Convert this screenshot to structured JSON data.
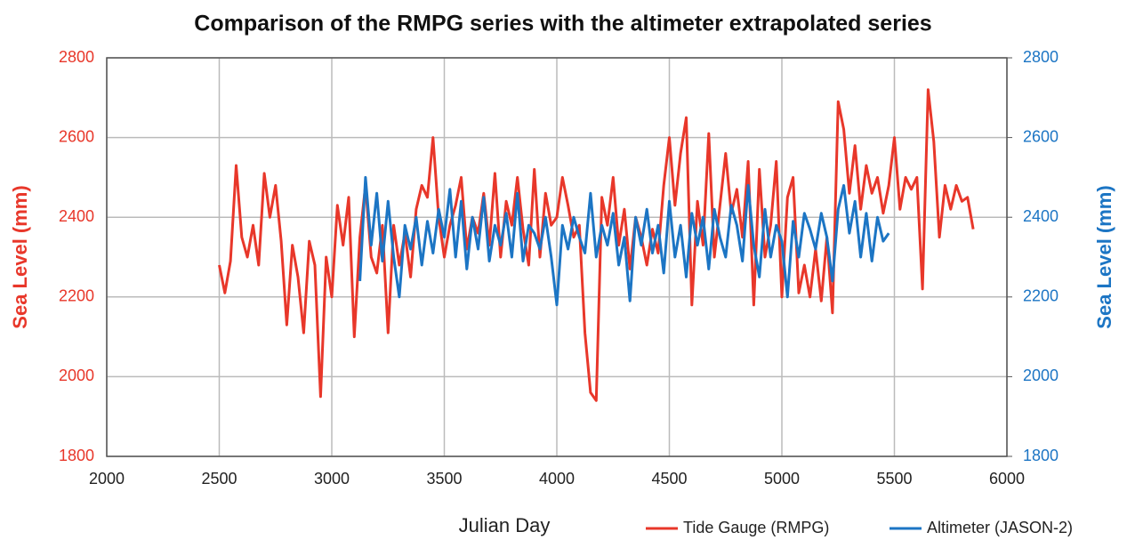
{
  "chart_data": {
    "type": "line",
    "title": "Comparison of the RMPG series with the  altimeter extrapolated series",
    "x_label": "Julian Day",
    "y_label": "Sea Level (mm)",
    "y2_label": "Sea Level (mm)",
    "xlim": [
      2000,
      6000
    ],
    "xticks": [
      2000,
      2500,
      3000,
      3500,
      4000,
      4500,
      5000,
      5500,
      6000
    ],
    "ylim": [
      1800,
      2800
    ],
    "yticks": [
      1800,
      2000,
      2200,
      2400,
      2600,
      2800
    ],
    "y2lim": [
      1800,
      2800
    ],
    "y2ticks": [
      1800,
      2000,
      2200,
      2400,
      2600,
      2800
    ],
    "grid": true,
    "legend": "bottom-right",
    "x": [
      2500,
      2525,
      2550,
      2575,
      2600,
      2625,
      2650,
      2675,
      2700,
      2725,
      2750,
      2775,
      2800,
      2825,
      2850,
      2875,
      2900,
      2925,
      2950,
      2975,
      3000,
      3025,
      3050,
      3075,
      3100,
      3125,
      3150,
      3175,
      3200,
      3225,
      3250,
      3275,
      3300,
      3325,
      3350,
      3375,
      3400,
      3425,
      3450,
      3475,
      3500,
      3525,
      3550,
      3575,
      3600,
      3625,
      3650,
      3675,
      3700,
      3725,
      3750,
      3775,
      3800,
      3825,
      3850,
      3875,
      3900,
      3925,
      3950,
      3975,
      4000,
      4025,
      4050,
      4075,
      4100,
      4125,
      4150,
      4175,
      4200,
      4225,
      4250,
      4275,
      4300,
      4325,
      4350,
      4375,
      4400,
      4425,
      4450,
      4475,
      4500,
      4525,
      4550,
      4575,
      4600,
      4625,
      4650,
      4675,
      4700,
      4725,
      4750,
      4775,
      4800,
      4825,
      4850,
      4875,
      4900,
      4925,
      4950,
      4975,
      5000,
      5025,
      5050,
      5075,
      5100,
      5125,
      5150,
      5175,
      5200,
      5225,
      5250,
      5275,
      5300,
      5325,
      5350,
      5375,
      5400,
      5425,
      5450,
      5475,
      5500,
      5525,
      5550,
      5575,
      5600,
      5625,
      5650,
      5675,
      5700,
      5725,
      5750,
      5775,
      5800,
      5825,
      5850
    ],
    "series": [
      {
        "name": "Tide Gauge (RMPG)",
        "color": "#e8372a",
        "axis": "y",
        "values": [
          2280,
          2210,
          2290,
          2530,
          2350,
          2300,
          2380,
          2280,
          2510,
          2400,
          2480,
          2340,
          2130,
          2330,
          2250,
          2110,
          2340,
          2280,
          1950,
          2300,
          2200,
          2430,
          2330,
          2450,
          2100,
          2350,
          2480,
          2300,
          2260,
          2380,
          2110,
          2380,
          2280,
          2360,
          2250,
          2420,
          2480,
          2450,
          2600,
          2400,
          2300,
          2380,
          2430,
          2500,
          2320,
          2400,
          2360,
          2460,
          2330,
          2510,
          2300,
          2440,
          2380,
          2500,
          2370,
          2280,
          2520,
          2300,
          2460,
          2380,
          2400,
          2500,
          2430,
          2350,
          2380,
          2110,
          1960,
          1940,
          2450,
          2380,
          2500,
          2330,
          2420,
          2270,
          2400,
          2350,
          2280,
          2370,
          2310,
          2480,
          2600,
          2430,
          2560,
          2650,
          2180,
          2440,
          2330,
          2610,
          2300,
          2430,
          2560,
          2410,
          2470,
          2350,
          2540,
          2180,
          2520,
          2300,
          2380,
          2540,
          2200,
          2450,
          2500,
          2210,
          2280,
          2200,
          2320,
          2190,
          2350,
          2160,
          2690,
          2620,
          2460,
          2580,
          2420,
          2530,
          2460,
          2500,
          2410,
          2480,
          2600,
          2420,
          2500,
          2470,
          2500,
          2220,
          2720,
          2590,
          2350,
          2480,
          2420,
          2480,
          2440,
          2450,
          2370
        ]
      },
      {
        "name": "Altimeter (JASON-2)",
        "color": "#1c75c4",
        "axis": "y2",
        "values": [
          null,
          null,
          null,
          null,
          null,
          null,
          null,
          null,
          null,
          null,
          null,
          null,
          null,
          null,
          null,
          null,
          null,
          null,
          null,
          null,
          null,
          null,
          null,
          null,
          null,
          2240,
          2500,
          2330,
          2460,
          2290,
          2440,
          2300,
          2200,
          2380,
          2320,
          2400,
          2280,
          2390,
          2310,
          2420,
          2350,
          2470,
          2300,
          2440,
          2270,
          2400,
          2320,
          2450,
          2290,
          2380,
          2330,
          2410,
          2300,
          2460,
          2290,
          2380,
          2360,
          2320,
          2400,
          2300,
          2180,
          2380,
          2320,
          2400,
          2350,
          2310,
          2460,
          2300,
          2380,
          2330,
          2410,
          2280,
          2350,
          2190,
          2400,
          2330,
          2420,
          2310,
          2380,
          2260,
          2440,
          2300,
          2380,
          2250,
          2410,
          2330,
          2400,
          2270,
          2420,
          2350,
          2300,
          2430,
          2380,
          2290,
          2480,
          2330,
          2250,
          2420,
          2300,
          2380,
          2340,
          2200,
          2390,
          2300,
          2410,
          2370,
          2320,
          2410,
          2350,
          2240,
          2420,
          2480,
          2360,
          2440,
          2300,
          2410,
          2290,
          2400,
          2340,
          2360,
          null,
          null,
          null,
          null,
          null,
          null,
          null,
          null,
          null,
          null,
          null,
          null,
          null,
          null,
          null
        ]
      }
    ]
  }
}
